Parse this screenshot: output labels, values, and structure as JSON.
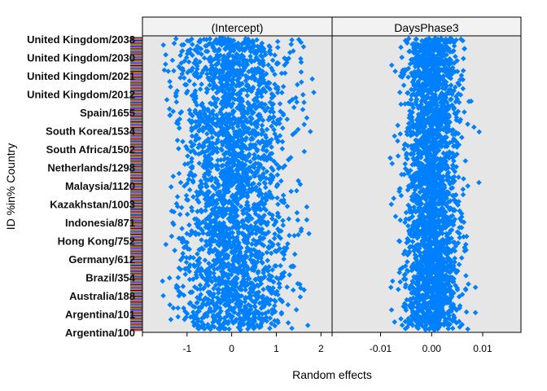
{
  "chart_data": {
    "type": "scatter",
    "title": "",
    "xlabel": "Random effects",
    "ylabel": "ID %in% Country",
    "point_color": "#0080ff",
    "panel_bg": "#e6e6e6",
    "strip_bg": "#f2f2f2",
    "panels": [
      {
        "name": "(Intercept)",
        "xlim": [
          -2.0,
          2.25
        ],
        "ticks": [
          -1,
          0,
          1,
          2
        ],
        "tick_labels": [
          "-1",
          "0",
          "1",
          "2"
        ],
        "spread_sd": 0.62,
        "range": [
          -1.55,
          1.95
        ]
      },
      {
        "name": "DaysPhase3",
        "xlim": [
          -0.0195,
          0.0175
        ],
        "ticks": [
          -0.01,
          0.0,
          0.01
        ],
        "tick_labels": [
          "-0.01",
          "0.00",
          "0.01"
        ],
        "spread_sd": 0.0026,
        "range": [
          -0.0145,
          0.0165
        ]
      }
    ],
    "n_points": 2600,
    "y_label_texts": [
      "United Kingdom/2038",
      "United Kingdom/2030",
      "United Kingdom/2021",
      "United Kingdom/2012",
      "Spain/1655",
      "South Korea/1534",
      "South Africa/1502",
      "Netherlands/1298",
      "Malaysia/1120",
      "Kazakhstan/1003",
      "Indonesia/871",
      "Hong Kong/752",
      "Germany/612",
      "Brazil/354",
      "Australia/188",
      "Argentina/101",
      "Argentina/100"
    ]
  }
}
